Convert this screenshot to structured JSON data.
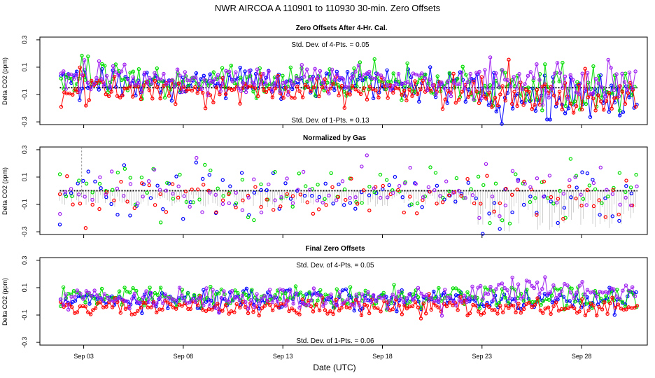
{
  "title": "NWR   AIRCOA A   110901 to 110930   30-min. Zero Offsets",
  "xlabel": "Date (UTC)",
  "chart_data": [
    {
      "type": "scatter",
      "title": "Zero Offsets After 4-Hr. Cal.",
      "ylabel": "Delta CO2 (ppm)",
      "ylim": [
        -0.32,
        0.32
      ],
      "yticks": [
        "0.3",
        "0.1",
        "-0.1",
        "-0.3"
      ],
      "xlim": [
        0.0,
        30.5
      ],
      "xticks": [
        "Sep 03",
        "Sep 08",
        "Sep 13",
        "Sep 18",
        "Sep 23",
        "Sep 28"
      ],
      "annotations": [
        "Std. Dev. of 4-Pts. =  0.05",
        "Std. Dev. of 1-Pts. =  0.13"
      ],
      "series": [
        {
          "name": "blue",
          "color": "#0000ff",
          "x_range": [
            1.0,
            30.0
          ],
          "mean_before": -0.02,
          "mean_after": -0.12,
          "spread": 0.06
        },
        {
          "name": "green",
          "color": "#00dd00",
          "x_range": [
            1.0,
            30.0
          ],
          "mean_before": 0.0,
          "mean_after": -0.06,
          "spread": 0.06
        },
        {
          "name": "red",
          "color": "#ff0000",
          "x_range": [
            1.0,
            30.0
          ],
          "mean_before": -0.07,
          "mean_after": -0.09,
          "spread": 0.05
        },
        {
          "name": "purple",
          "color": "#a020f0",
          "x_range": [
            1.0,
            30.0
          ],
          "mean_before": 0.01,
          "mean_after": 0.0,
          "spread": 0.05
        }
      ],
      "reference_line": {
        "color": "#000000",
        "value_before": -0.05,
        "value_after": -0.05
      }
    },
    {
      "type": "scatter",
      "title": "Normalized by Gas",
      "ylabel": "Delta CO2 (ppm)",
      "ylim": [
        -0.32,
        0.32
      ],
      "yticks": [
        "0.3",
        "0.1",
        "-0.1",
        "-0.3"
      ],
      "xlim": [
        0.0,
        30.5
      ],
      "xticks": [
        "Sep 03",
        "Sep 08",
        "Sep 13",
        "Sep 18",
        "Sep 23",
        "Sep 28"
      ],
      "annotations": [],
      "series": [
        {
          "name": "blue",
          "color": "#0000ff",
          "x_range": [
            1.0,
            30.0
          ],
          "mean_before": -0.02,
          "mean_after": -0.1,
          "spread": 0.1
        },
        {
          "name": "green",
          "color": "#00dd00",
          "x_range": [
            1.0,
            30.0
          ],
          "mean_before": 0.02,
          "mean_after": -0.02,
          "spread": 0.09
        },
        {
          "name": "red",
          "color": "#ff0000",
          "x_range": [
            1.0,
            30.0
          ],
          "mean_before": -0.03,
          "mean_after": -0.04,
          "spread": 0.09
        },
        {
          "name": "purple",
          "color": "#a020f0",
          "x_range": [
            1.0,
            30.0
          ],
          "mean_before": 0.0,
          "mean_after": -0.03,
          "spread": 0.09
        }
      ],
      "reference_line": {
        "color": "#000000",
        "value_before": 0.0,
        "value_after": 0.0
      }
    },
    {
      "type": "scatter",
      "title": "Final Zero Offsets",
      "ylabel": "Delta CO2 (ppm)",
      "ylim": [
        -0.32,
        0.32
      ],
      "yticks": [
        "0.3",
        "0.1",
        "-0.1",
        "-0.3"
      ],
      "xlim": [
        0.0,
        30.5
      ],
      "xticks": [
        "Sep 03",
        "Sep 08",
        "Sep 13",
        "Sep 18",
        "Sep 23",
        "Sep 28"
      ],
      "annotations": [
        "Std. Dev. of 4-Pts. =  0.05",
        "Std. Dev. of 1-Pts. =  0.06"
      ],
      "series": [
        {
          "name": "blue",
          "color": "#0000ff",
          "x_range": [
            1.0,
            30.0
          ],
          "mean_before": 0.02,
          "mean_after": 0.0,
          "spread": 0.04
        },
        {
          "name": "green",
          "color": "#00dd00",
          "x_range": [
            1.0,
            30.0
          ],
          "mean_before": 0.03,
          "mean_after": 0.02,
          "spread": 0.04
        },
        {
          "name": "red",
          "color": "#ff0000",
          "x_range": [
            1.0,
            30.0
          ],
          "mean_before": -0.04,
          "mean_after": -0.05,
          "spread": 0.03
        },
        {
          "name": "purple",
          "color": "#a020f0",
          "x_range": [
            1.0,
            30.0
          ],
          "mean_before": 0.02,
          "mean_after": 0.08,
          "spread": 0.04
        }
      ],
      "reference_line": null
    }
  ]
}
